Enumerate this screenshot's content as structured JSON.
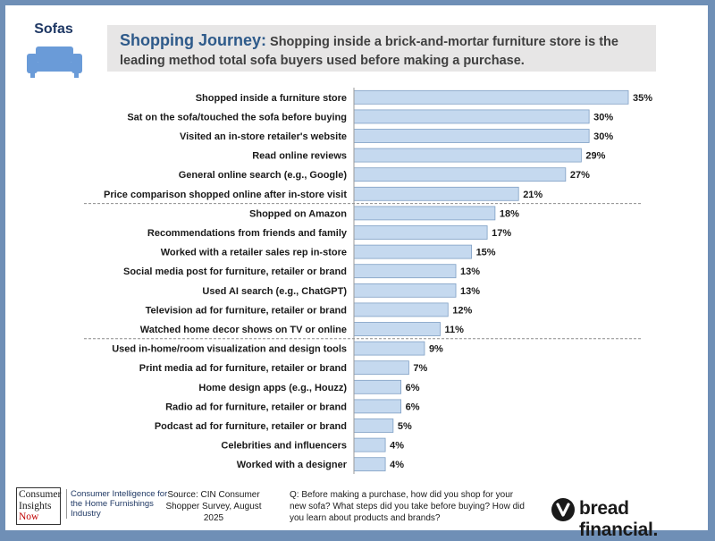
{
  "category": {
    "label": "Sofas",
    "icon": "sofa-icon"
  },
  "headline": {
    "lead": "Shopping Journey:",
    "text": "Shopping inside a brick-and-mortar furniture store is the leading method total sofa buyers used before making a purchase."
  },
  "chart_data": {
    "type": "bar",
    "orientation": "horizontal",
    "categories": [
      "Shopped inside a furniture store",
      "Sat on the sofa/touched the sofa before buying",
      "Visited an in-store retailer's website",
      "Read online reviews",
      "General online search (e.g., Google)",
      "Price comparison shopped online after in-store visit",
      "Shopped on Amazon",
      "Recommendations from friends and family",
      "Worked with a retailer sales rep in-store",
      "Social media post for furniture, retailer or brand",
      "Used AI search (e.g., ChatGPT)",
      "Television ad for furniture, retailer or brand",
      "Watched home decor shows on TV or online",
      "Used in-home/room visualization and design tools",
      "Print media ad for furniture, retailer or brand",
      "Home design apps (e.g., Houzz)",
      "Radio ad for furniture, retailer or brand",
      "Podcast ad for furniture, retailer or brand",
      "Celebrities and influencers",
      "Worked with a designer"
    ],
    "values": [
      35,
      30,
      30,
      29,
      27,
      21,
      18,
      17,
      15,
      13,
      13,
      12,
      11,
      9,
      7,
      6,
      6,
      5,
      4,
      4
    ],
    "value_labels": [
      "35%",
      "30%",
      "30%",
      "29%",
      "27%",
      "21%",
      "18%",
      "17%",
      "15%",
      "13%",
      "13%",
      "12%",
      "11%",
      "9%",
      "7%",
      "6%",
      "6%",
      "5%",
      "4%",
      "4%"
    ],
    "xlim": [
      0,
      35
    ],
    "group_dividers_after": [
      5,
      12
    ],
    "grid": false,
    "colors": {
      "bar_fill": "#c5d9ef",
      "bar_stroke": "#7f9fc4"
    }
  },
  "footer": {
    "logo_lines": [
      "Consumer",
      "Insights",
      "Now"
    ],
    "logo_tagline": "Consumer Intelligence for the Home Furnishings Industry",
    "source": "Source: CIN Consumer Shopper Survey, August 2025",
    "question": "Q: Before making a purchase, how did you shop for your new sofa? What steps did you take before buying? How did you learn about products and brands?",
    "brand": "bread financial.",
    "brand_icon": "bread-logo-icon"
  }
}
